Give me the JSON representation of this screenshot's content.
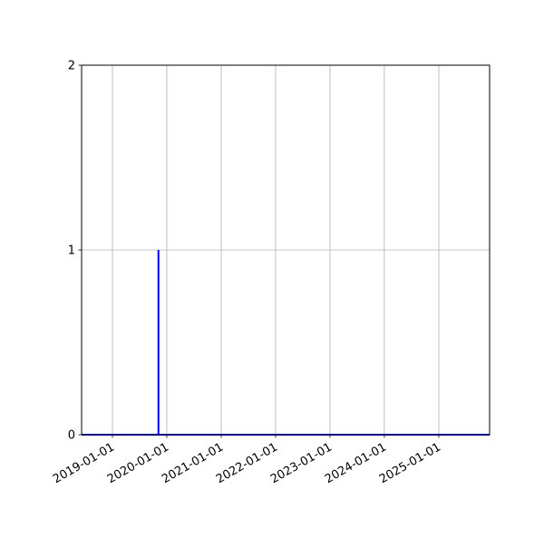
{
  "chart_data": {
    "type": "line",
    "title": "",
    "xlabel": "",
    "ylabel": "",
    "x_axis_type": "date",
    "xlim": [
      "2018-06-08",
      "2025-12-08"
    ],
    "ylim": [
      0,
      2
    ],
    "grid": true,
    "x_ticks": [
      "2019-01-01",
      "2020-01-01",
      "2021-01-01",
      "2022-01-01",
      "2023-01-01",
      "2024-01-01",
      "2025-01-01"
    ],
    "y_ticks": [
      0,
      1,
      2
    ],
    "y_tick_labels": [
      "0",
      "1",
      "2"
    ],
    "series": [
      {
        "color": "#0000ff",
        "points": [
          {
            "x": "2018-06-08",
            "y": 0
          },
          {
            "x": "2019-11-06",
            "y": 0
          },
          {
            "x": "2019-11-06",
            "y": 1
          },
          {
            "x": "2019-11-06",
            "y": 0
          },
          {
            "x": "2025-12-08",
            "y": 0
          }
        ]
      }
    ]
  }
}
